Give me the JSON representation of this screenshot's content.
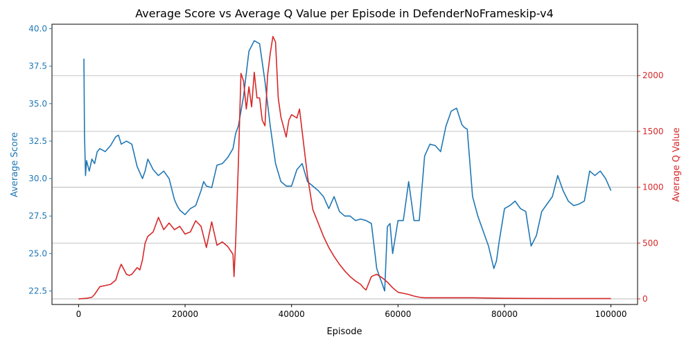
{
  "chart_data": {
    "type": "line",
    "title": "Average Score vs Average Q Value per Episode in DefenderNoFrameskip-v4",
    "xlabel": "Episode",
    "ylabel_left": "Average Score",
    "ylabel_right": "Average Q Value",
    "xlim": [
      -5000,
      105000
    ],
    "ylim_left": [
      21.6,
      40.3
    ],
    "ylim_right": [
      -50,
      2460
    ],
    "x_ticks": [
      "0",
      "20000",
      "40000",
      "60000",
      "80000",
      "100000"
    ],
    "y_ticks_left": [
      "22.5",
      "25.0",
      "27.5",
      "30.0",
      "32.5",
      "35.0",
      "37.5",
      "40.0"
    ],
    "y_ticks_right": [
      "0",
      "500",
      "1000",
      "1500",
      "2000"
    ],
    "grid": "right-axis horizontal",
    "colors": {
      "score": "#1f77b4",
      "q": "#d62728",
      "axis": "#000000",
      "grid": "#b0b0b0"
    },
    "series": [
      {
        "name": "Average Score",
        "axis": "left",
        "x": [
          0,
          1000,
          1100,
          1300,
          1500,
          2000,
          2500,
          3000,
          3500,
          4000,
          5000,
          6000,
          7000,
          7500,
          8000,
          9000,
          10000,
          11000,
          12000,
          12500,
          13000,
          14000,
          15000,
          16000,
          17000,
          18000,
          18500,
          19000,
          20000,
          21000,
          22000,
          23000,
          23500,
          24000,
          25000,
          26000,
          27000,
          28000,
          29000,
          29500,
          30000,
          31000,
          32000,
          33000,
          34000,
          35000,
          35500,
          36000,
          37000,
          38000,
          39000,
          40000,
          41000,
          42000,
          43000,
          44000,
          45000,
          46000,
          47000,
          48000,
          49000,
          50000,
          51000,
          52000,
          53000,
          54000,
          55000,
          55500,
          56000,
          56500,
          57000,
          57500,
          58000,
          58500,
          59000,
          60000,
          61000,
          62000,
          63000,
          64000,
          65000,
          66000,
          67000,
          68000,
          69000,
          70000,
          71000,
          72000,
          72500,
          73000,
          74000,
          75000,
          76000,
          77000,
          78000,
          78500,
          79000,
          80000,
          81000,
          82000,
          83000,
          84000,
          85000,
          86000,
          87000,
          88000,
          89000,
          90000,
          91000,
          92000,
          93000,
          94000,
          95000,
          96000,
          97000,
          98000,
          99000,
          100000
        ],
        "values": [
          null,
          38.0,
          33.0,
          30.2,
          31.2,
          30.5,
          31.3,
          31.0,
          31.8,
          32.0,
          31.8,
          32.2,
          32.8,
          32.9,
          32.3,
          32.5,
          32.3,
          30.8,
          30.0,
          30.5,
          31.3,
          30.6,
          30.2,
          30.5,
          30.0,
          28.6,
          28.2,
          27.9,
          27.6,
          28.0,
          28.2,
          29.2,
          29.8,
          29.5,
          29.4,
          30.9,
          31.0,
          31.4,
          32.0,
          33.0,
          33.5,
          35.5,
          38.5,
          39.2,
          39.0,
          36.5,
          35.0,
          33.5,
          31.0,
          29.8,
          29.5,
          29.5,
          30.6,
          31.0,
          29.8,
          29.5,
          29.2,
          28.8,
          28.0,
          28.8,
          27.8,
          27.5,
          27.5,
          27.2,
          27.3,
          27.2,
          27.0,
          25.5,
          24.0,
          23.5,
          23.0,
          22.5,
          26.8,
          27.0,
          25.0,
          27.2,
          27.2,
          29.8,
          27.2,
          27.2,
          31.5,
          32.3,
          32.2,
          31.8,
          33.5,
          34.5,
          34.7,
          33.6,
          33.4,
          33.3,
          28.8,
          27.5,
          26.5,
          25.5,
          24.0,
          24.5,
          25.8,
          28.0,
          28.2,
          28.5,
          28.0,
          27.8,
          25.5,
          26.2,
          27.8,
          28.3,
          28.8,
          30.2,
          29.2,
          28.5,
          28.2,
          28.3,
          28.5,
          30.5,
          30.2,
          30.5,
          30.0,
          29.2
        ]
      },
      {
        "name": "Average Q Value",
        "axis": "right",
        "x": [
          0,
          1500,
          2500,
          3000,
          4000,
          5000,
          6000,
          7000,
          7500,
          8000,
          9000,
          9500,
          10000,
          11000,
          11500,
          12000,
          12500,
          13000,
          14000,
          15000,
          16000,
          17000,
          18000,
          19000,
          20000,
          21000,
          22000,
          23000,
          24000,
          25000,
          26000,
          27000,
          28000,
          29000,
          29200,
          29500,
          30000,
          30500,
          31000,
          31500,
          32000,
          32500,
          33000,
          33500,
          34000,
          34500,
          35000,
          35500,
          36000,
          36500,
          37000,
          37500,
          38000,
          39000,
          39500,
          40000,
          41000,
          41500,
          42000,
          43000,
          44000,
          45000,
          46000,
          47000,
          48000,
          49000,
          50000,
          51000,
          52000,
          53000,
          53500,
          54000,
          55000,
          56000,
          57000,
          58000,
          59000,
          60000,
          61000,
          62000,
          63000,
          64000,
          65000,
          66000,
          68000,
          70000,
          72000,
          74000,
          76000,
          80000,
          85000,
          90000,
          95000,
          100000
        ],
        "values": [
          0,
          5,
          15,
          40,
          110,
          120,
          130,
          170,
          250,
          310,
          220,
          210,
          220,
          280,
          260,
          350,
          500,
          560,
          600,
          730,
          620,
          680,
          620,
          650,
          580,
          600,
          700,
          650,
          460,
          690,
          480,
          510,
          470,
          400,
          200,
          500,
          1200,
          2020,
          1950,
          1700,
          1900,
          1720,
          2030,
          1800,
          1800,
          1600,
          1550,
          2000,
          2200,
          2350,
          2300,
          1800,
          1630,
          1450,
          1600,
          1650,
          1620,
          1700,
          1500,
          1100,
          800,
          680,
          560,
          460,
          380,
          310,
          250,
          200,
          160,
          130,
          100,
          80,
          200,
          220,
          190,
          150,
          100,
          60,
          50,
          40,
          25,
          15,
          10,
          10,
          10,
          10,
          10,
          10,
          8,
          5,
          4,
          3,
          3,
          3
        ]
      }
    ]
  }
}
